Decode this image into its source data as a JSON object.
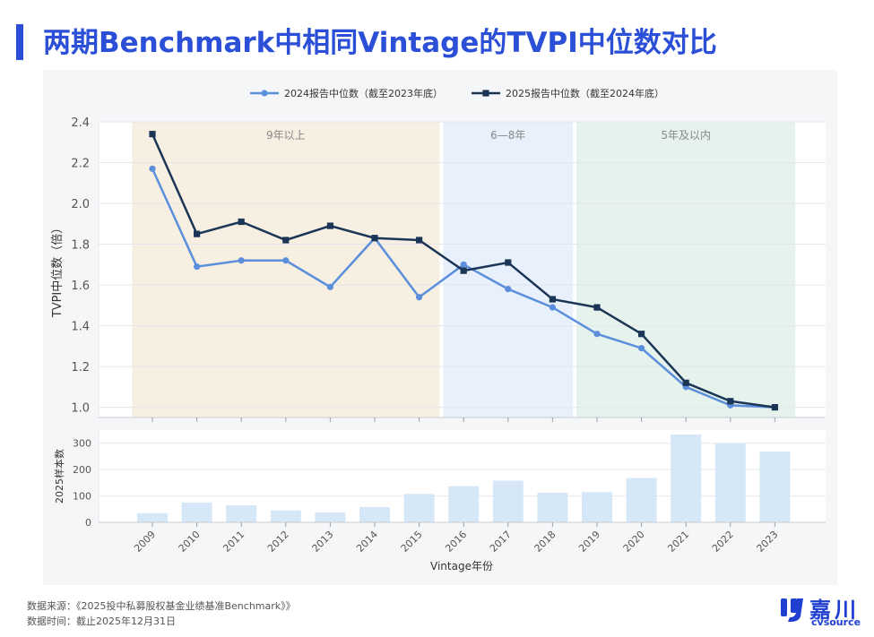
{
  "header": {
    "title": "两期Benchmark中相同Vintage的TVPI中位数对比"
  },
  "footer": {
    "source": "数据来源：《2025投中私募股权基金业绩基准Benchmark》》",
    "date": "数据时间：截止2025年12月31日"
  },
  "logo": {
    "cn": "嘉川",
    "en": "cvsource"
  },
  "colors": {
    "series_2024": "#5b8fdc",
    "series_2025": "#1b3557",
    "bars": "#d6e8f7",
    "band_9y": "#f7efe2",
    "band_6_8": "#e7f0fb",
    "band_5": "#e6f2ec"
  },
  "chart_data": [
    {
      "type": "line",
      "categories": [
        "2009",
        "2010",
        "2011",
        "2012",
        "2013",
        "2014",
        "2015",
        "2016",
        "2017",
        "2018",
        "2019",
        "2020",
        "2021",
        "2022",
        "2023"
      ],
      "series": [
        {
          "name": "2024报告中位数（截至2023年底）",
          "values": [
            2.17,
            1.69,
            1.72,
            1.72,
            1.59,
            1.83,
            1.54,
            1.7,
            1.58,
            1.49,
            1.36,
            1.29,
            1.1,
            1.01,
            1.0
          ]
        },
        {
          "name": "2025报告中位数（截至2024年底）",
          "values": [
            2.34,
            1.85,
            1.91,
            1.82,
            1.89,
            1.83,
            1.82,
            1.67,
            1.71,
            1.53,
            1.49,
            1.36,
            1.12,
            1.03,
            1.0
          ]
        }
      ],
      "ylabel": "TVPI中位数（倍）",
      "ylim": [
        0.95,
        2.4
      ],
      "yticks": [
        "2.4",
        "2.2",
        "2.0",
        "1.8",
        "1.6",
        "1.4",
        "1.2",
        "1.0"
      ],
      "bands": [
        {
          "label": "9年以上",
          "from": "2009",
          "to": "2015"
        },
        {
          "label": "6—8年",
          "from": "2016",
          "to": "2018"
        },
        {
          "label": "5年及以内",
          "from": "2019",
          "to": "2023"
        }
      ],
      "legend_position": "top-center",
      "grid": true
    },
    {
      "type": "bar",
      "categories": [
        "2009",
        "2010",
        "2011",
        "2012",
        "2013",
        "2014",
        "2015",
        "2016",
        "2017",
        "2018",
        "2019",
        "2020",
        "2021",
        "2022",
        "2023"
      ],
      "values": [
        35,
        75,
        65,
        45,
        38,
        58,
        108,
        137,
        158,
        112,
        115,
        168,
        333,
        300,
        268
      ],
      "ylabel": "2025样本数",
      "xlabel": "Vintage年份",
      "ylim": [
        0,
        350
      ],
      "yticks": [
        "300",
        "200",
        "100",
        "0"
      ],
      "grid": true
    }
  ]
}
